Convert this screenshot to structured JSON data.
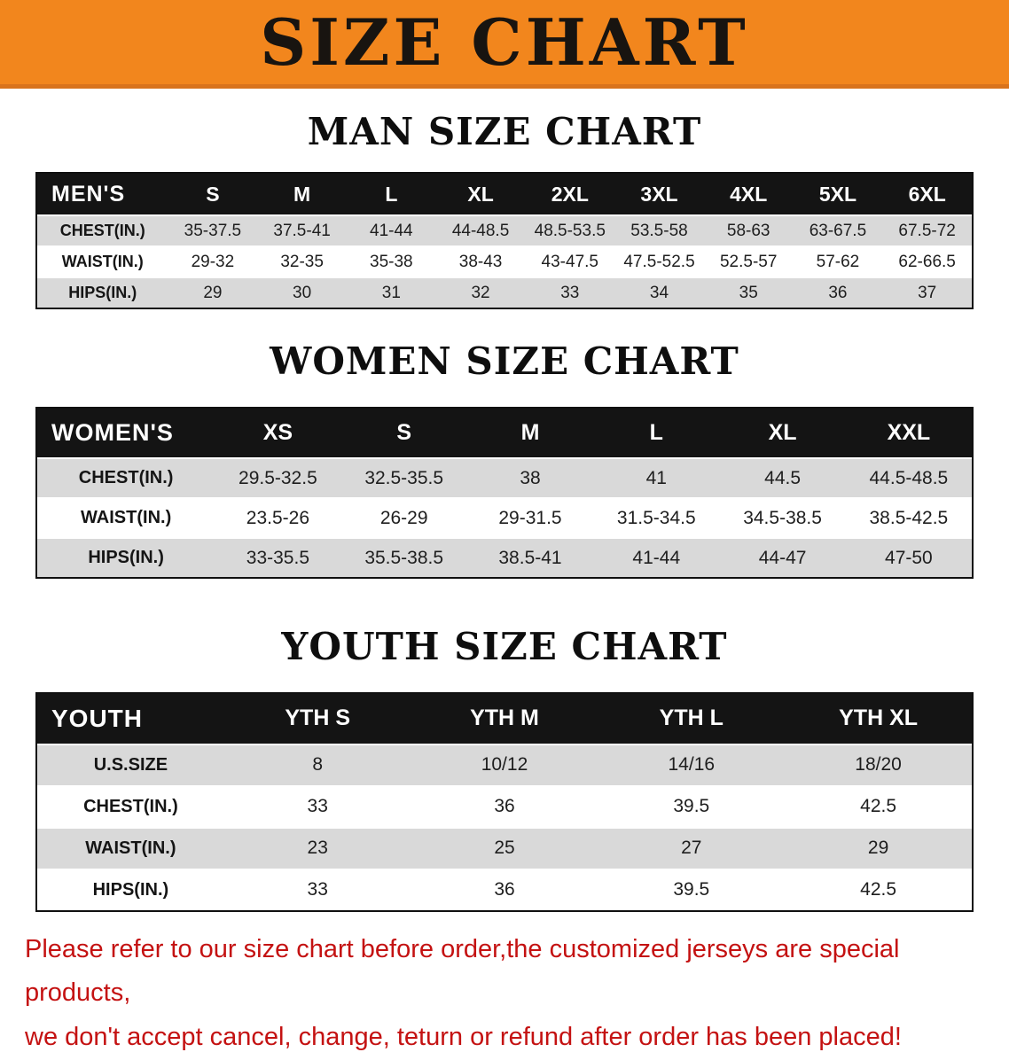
{
  "banner": {
    "title": "SIZE CHART"
  },
  "colors": {
    "banner_bg": "#f2861d",
    "header_bg": "#141414",
    "row_shade": "#d9d9d9",
    "note_red": "#c41212"
  },
  "men": {
    "heading": "MAN SIZE CHART",
    "corner": "MEN'S",
    "columns": [
      "S",
      "M",
      "L",
      "XL",
      "2XL",
      "3XL",
      "4XL",
      "5XL",
      "6XL"
    ],
    "rows": [
      {
        "label": "CHEST(IN.)",
        "values": [
          "35-37.5",
          "37.5-41",
          "41-44",
          "44-48.5",
          "48.5-53.5",
          "53.5-58",
          "58-63",
          "63-67.5",
          "67.5-72"
        ]
      },
      {
        "label": "WAIST(IN.)",
        "values": [
          "29-32",
          "32-35",
          "35-38",
          "38-43",
          "43-47.5",
          "47.5-52.5",
          "52.5-57",
          "57-62",
          "62-66.5"
        ]
      },
      {
        "label": "HIPS(IN.)",
        "values": [
          "29",
          "30",
          "31",
          "32",
          "33",
          "34",
          "35",
          "36",
          "37"
        ]
      }
    ]
  },
  "women": {
    "heading": "WOMEN SIZE CHART",
    "corner": "WOMEN'S",
    "columns": [
      "XS",
      "S",
      "M",
      "L",
      "XL",
      "XXL"
    ],
    "rows": [
      {
        "label": "CHEST(IN.)",
        "values": [
          "29.5-32.5",
          "32.5-35.5",
          "38",
          "41",
          "44.5",
          "44.5-48.5"
        ]
      },
      {
        "label": "WAIST(IN.)",
        "values": [
          "23.5-26",
          "26-29",
          "29-31.5",
          "31.5-34.5",
          "34.5-38.5",
          "38.5-42.5"
        ]
      },
      {
        "label": "HIPS(IN.)",
        "values": [
          "33-35.5",
          "35.5-38.5",
          "38.5-41",
          "41-44",
          "44-47",
          "47-50"
        ]
      }
    ]
  },
  "youth": {
    "heading": "YOUTH SIZE CHART",
    "corner": "YOUTH",
    "columns": [
      "YTH S",
      "YTH M",
      "YTH L",
      "YTH XL"
    ],
    "rows": [
      {
        "label": "U.S.SIZE",
        "values": [
          "8",
          "10/12",
          "14/16",
          "18/20"
        ]
      },
      {
        "label": "CHEST(IN.)",
        "values": [
          "33",
          "36",
          "39.5",
          "42.5"
        ]
      },
      {
        "label": "WAIST(IN.)",
        "values": [
          "23",
          "25",
          "27",
          "29"
        ]
      },
      {
        "label": "HIPS(IN.)",
        "values": [
          "33",
          "36",
          "39.5",
          "42.5"
        ]
      }
    ]
  },
  "note": {
    "line1": "Please refer to our size chart before order,the customized jerseys are special products,",
    "line2": "we don't accept cancel, change, teturn or refund after order has been placed!"
  }
}
